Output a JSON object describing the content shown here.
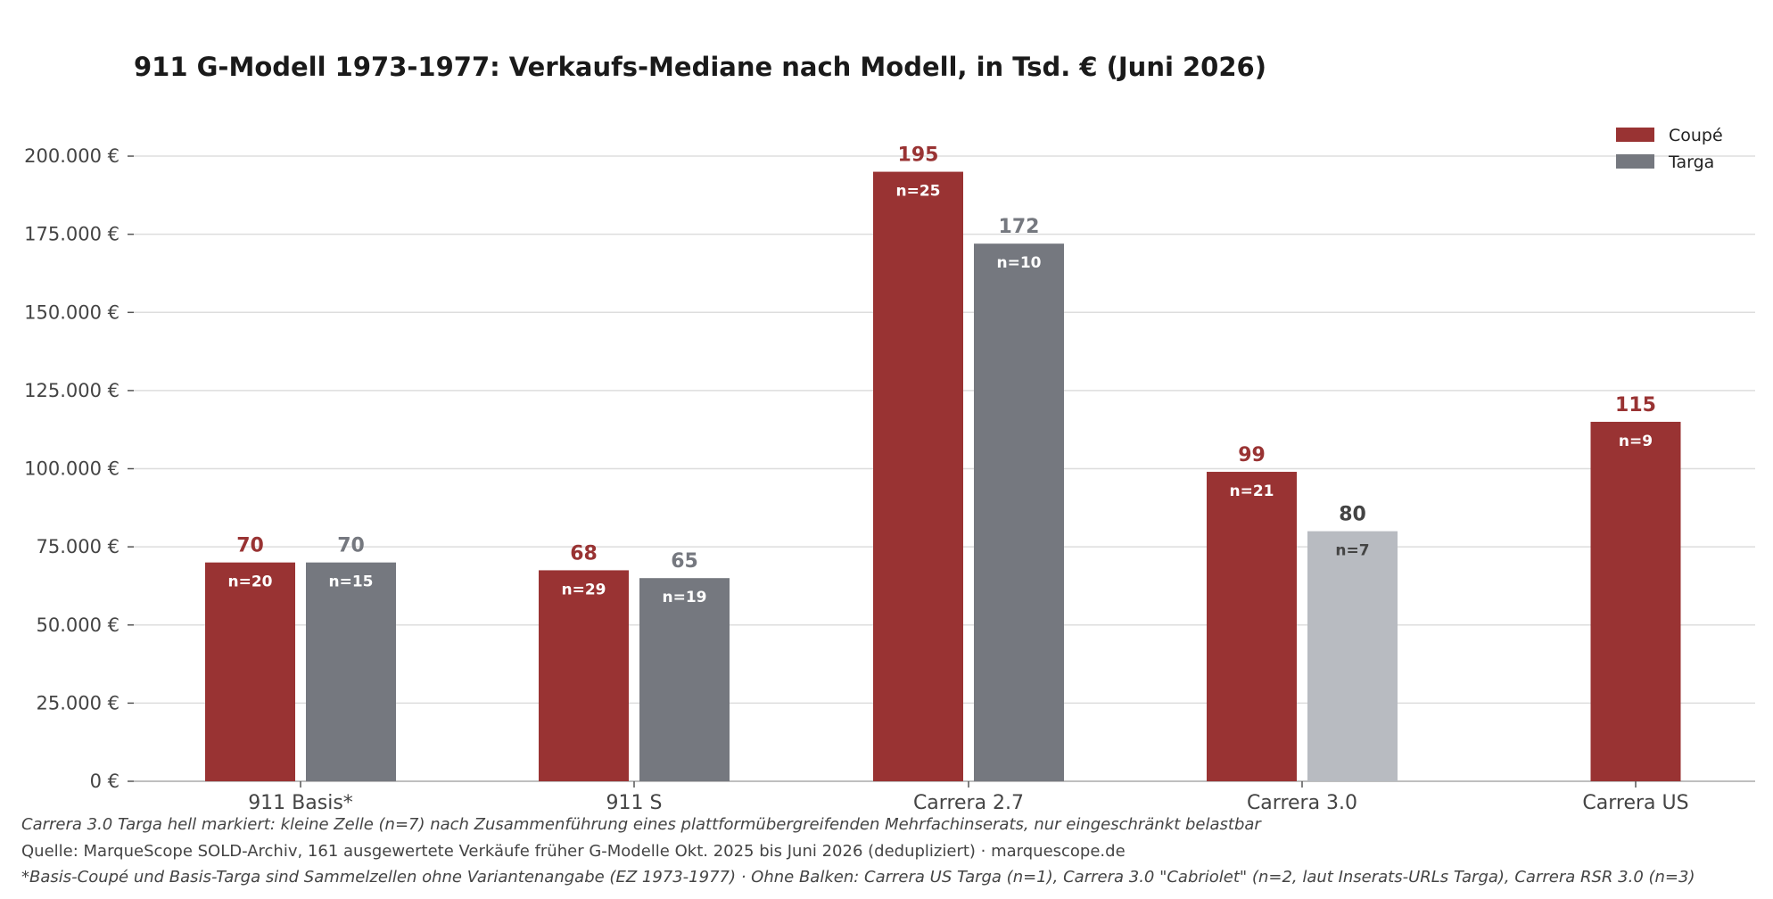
{
  "chart_data": {
    "type": "bar",
    "title": "911 G-Modell 1973-1977: Verkaufs-Mediane nach Modell, in Tsd. € (Juni 2026)",
    "xlabel": "",
    "ylabel": "",
    "ylim": [
      0,
      210000
    ],
    "yticks": [
      {
        "value": 0,
        "label": "0 €"
      },
      {
        "value": 25000,
        "label": "25.000 €"
      },
      {
        "value": 50000,
        "label": "50.000 €"
      },
      {
        "value": 75000,
        "label": "75.000 €"
      },
      {
        "value": 100000,
        "label": "100.000 €"
      },
      {
        "value": 125000,
        "label": "125.000 €"
      },
      {
        "value": 150000,
        "label": "150.000 €"
      },
      {
        "value": 175000,
        "label": "175.000 €"
      },
      {
        "value": 200000,
        "label": "200.000 €"
      }
    ],
    "grid": true,
    "legend_position": "top-right",
    "categories": [
      "911 Basis*",
      "911 S",
      "Carrera 2.7",
      "Carrera 3.0",
      "Carrera US"
    ],
    "series": [
      {
        "name": "Coupé",
        "color": "#993333",
        "values": [
          70000,
          67500,
          195000,
          99000,
          115000
        ],
        "value_labels": [
          "70",
          "68",
          "195",
          "99",
          "115"
        ],
        "n_labels": [
          "n=20",
          "n=29",
          "n=25",
          "n=21",
          "n=9"
        ],
        "highlight": [
          false,
          false,
          false,
          false,
          false
        ]
      },
      {
        "name": "Targa",
        "color": "#75787f",
        "values": [
          70000,
          65000,
          172000,
          80000,
          null
        ],
        "value_labels": [
          "70",
          "65",
          "172",
          "80",
          ""
        ],
        "n_labels": [
          "n=15",
          "n=19",
          "n=10",
          "n=7",
          ""
        ],
        "highlight": [
          false,
          false,
          false,
          true,
          false
        ]
      }
    ],
    "highlight_color": "#b8bbc1",
    "highlight_text_color": "#444444"
  },
  "footnotes": [
    "Carrera 3.0 Targa hell markiert: kleine Zelle (n=7) nach Zusammenführung eines plattformübergreifenden Mehrfachinserats, nur eingeschränkt belastbar",
    "Quelle: MarqueScope SOLD-Archiv, 161 ausgewertete Verkäufe früher G-Modelle Okt. 2025 bis Juni 2026 (dedupliziert) · marquescope.de",
    "*Basis-Coupé und Basis-Targa sind Sammelzellen ohne Variantenangabe (EZ 1973-1977) · Ohne Balken: Carrera US Targa (n=1), Carrera 3.0 \"Cabriolet\" (n=2, laut Inserats-URLs Targa), Carrera RSR 3.0 (n=3)"
  ]
}
